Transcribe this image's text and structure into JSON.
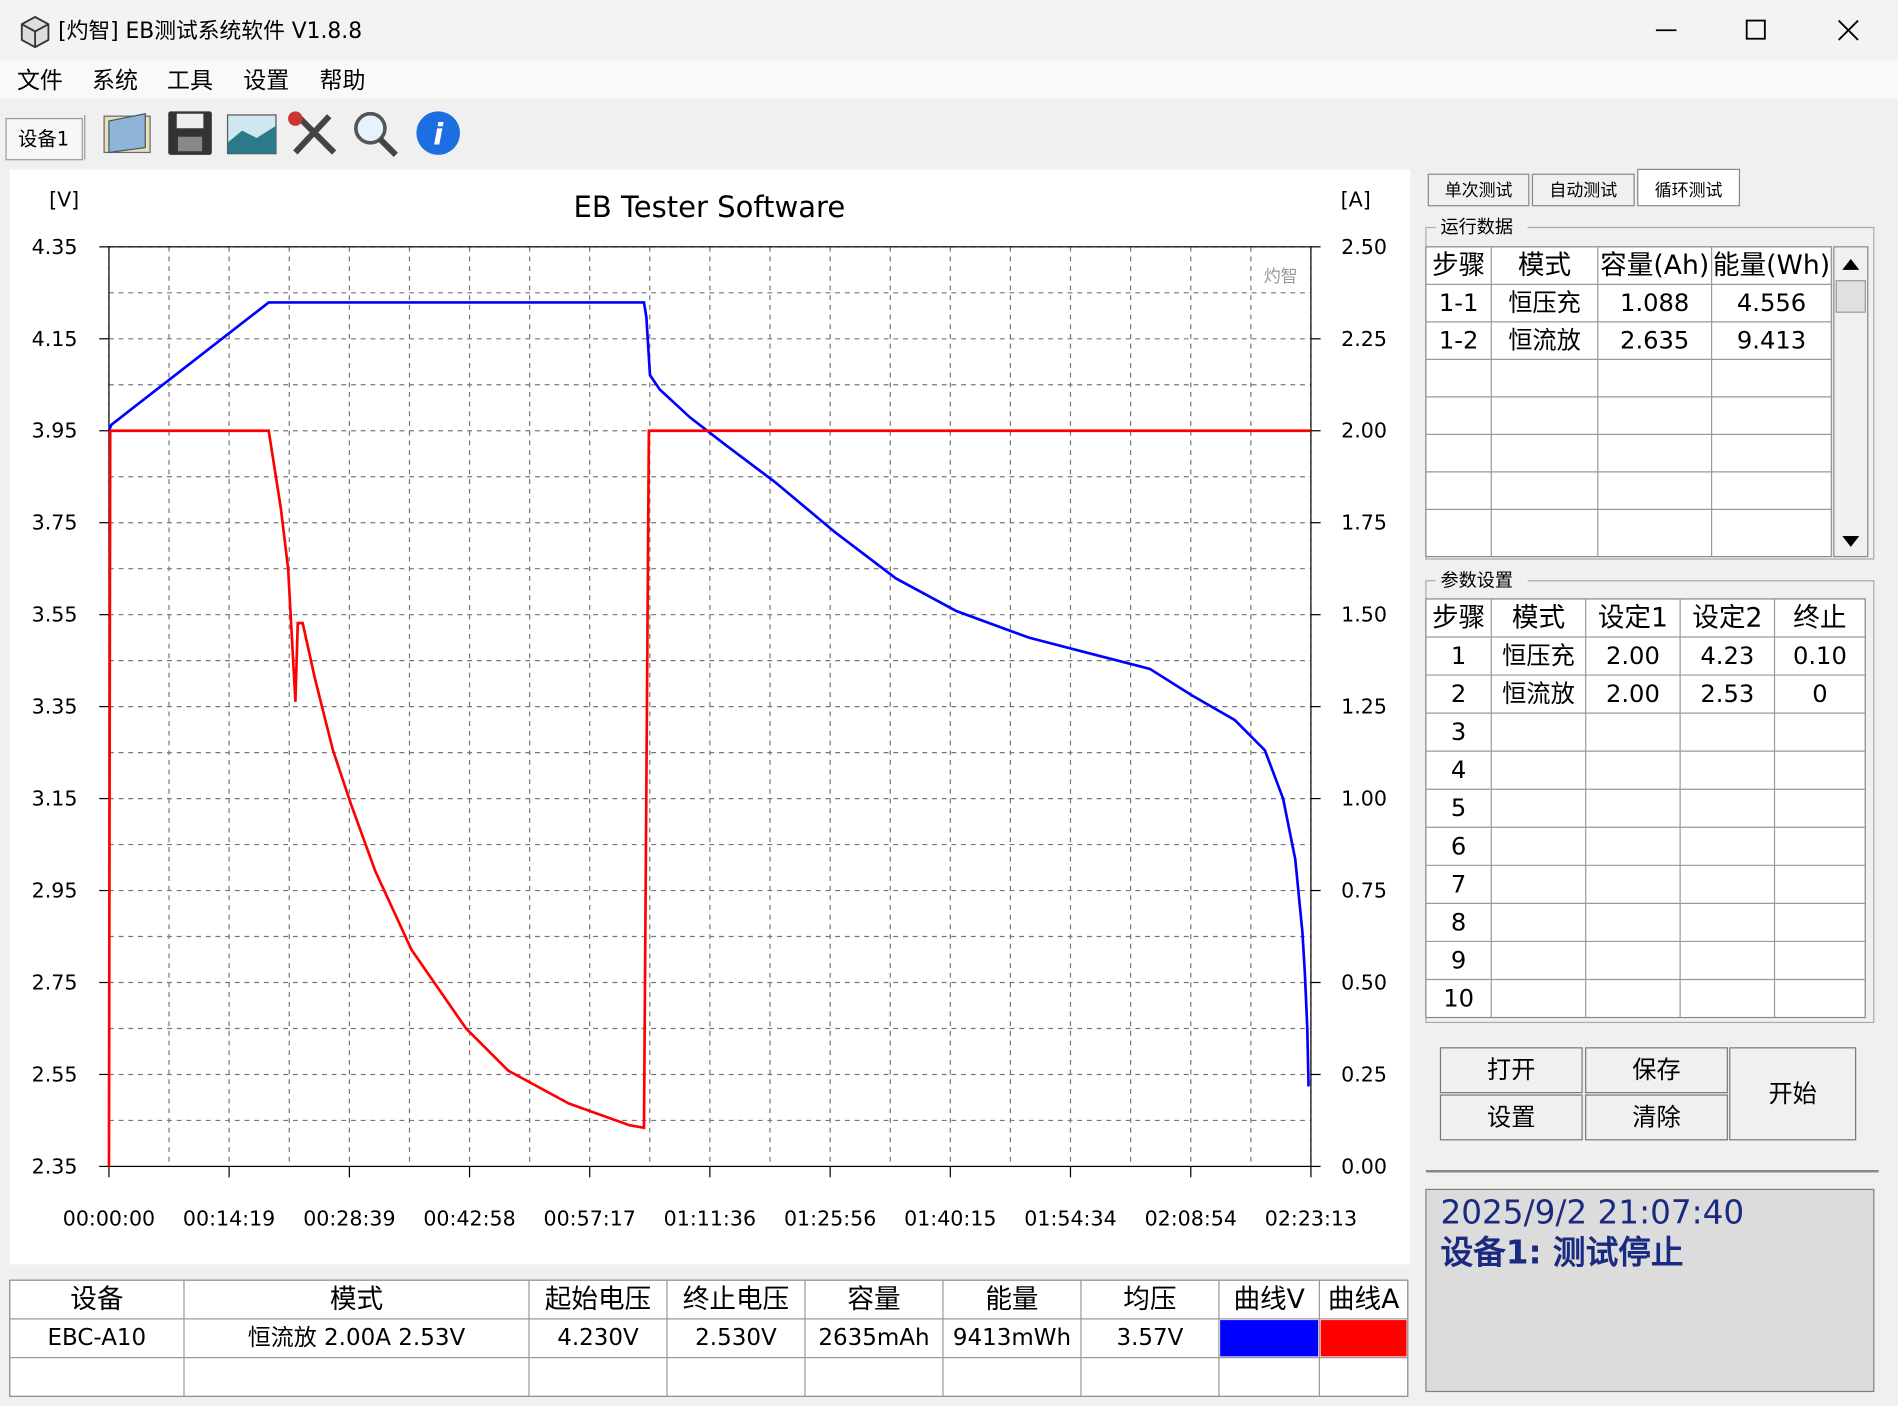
{
  "window": {
    "title": "[灼智] EB测试系统软件 V1.8.8"
  },
  "menu": [
    "文件",
    "系统",
    "工具",
    "设置",
    "帮助"
  ],
  "device_tab": "设备1",
  "chart_data": {
    "type": "line",
    "title": "EB Tester Software",
    "y_label": "[V]",
    "y2_label": "[A]",
    "watermark": "灼智",
    "xlim": [
      0,
      8593
    ],
    "xticks": [
      {
        "value": 0,
        "label": "00:00:00"
      },
      {
        "value": 859,
        "label": "00:14:19"
      },
      {
        "value": 1719,
        "label": "00:28:39"
      },
      {
        "value": 2578,
        "label": "00:42:58"
      },
      {
        "value": 3437,
        "label": "00:57:17"
      },
      {
        "value": 4296,
        "label": "01:11:36"
      },
      {
        "value": 5156,
        "label": "01:25:56"
      },
      {
        "value": 6015,
        "label": "01:40:15"
      },
      {
        "value": 6874,
        "label": "01:54:34"
      },
      {
        "value": 7734,
        "label": "02:08:54"
      },
      {
        "value": 8593,
        "label": "02:23:13"
      }
    ],
    "ylim": [
      2.35,
      4.35
    ],
    "yticks": [
      2.35,
      2.55,
      2.75,
      2.95,
      3.15,
      3.35,
      3.55,
      3.75,
      3.95,
      4.15,
      4.35
    ],
    "y2lim": [
      0,
      2.5
    ],
    "y2ticks": [
      {
        "value": 0,
        "label": "0.00"
      },
      0.25,
      {
        "value": 0.5,
        "label": "0.50"
      },
      0.75,
      {
        "value": 1,
        "label": "1.00"
      },
      1.25,
      {
        "value": 1.5,
        "label": "1.50"
      },
      1.75,
      {
        "value": 2,
        "label": "2.00"
      },
      2.25,
      {
        "value": 2.5,
        "label": "2.50"
      }
    ],
    "grid": true,
    "series": [
      {
        "color": "#0000ff",
        "x": [
          0,
          17,
          1142,
          3825,
          3842,
          3868,
          3937,
          4154,
          4413,
          4759,
          5192,
          5625,
          6058,
          6577,
          7009,
          7442,
          7745,
          8048,
          8264,
          8394,
          8481,
          8532,
          8550,
          8567,
          8576
        ],
        "values": [
          3.95,
          3.963,
          4.229,
          4.229,
          4.197,
          4.071,
          4.04,
          3.979,
          3.918,
          3.839,
          3.729,
          3.629,
          3.558,
          3.5,
          3.466,
          3.432,
          3.374,
          3.321,
          3.255,
          3.15,
          3.018,
          2.86,
          2.768,
          2.65,
          2.524
        ]
      },
      {
        "color": "#ff0000",
        "axis": "y2",
        "x": [
          0,
          9,
          1142,
          1229,
          1281,
          1333,
          1350,
          1385,
          1471,
          1601,
          1731,
          1904,
          2163,
          2553,
          2856,
          3288,
          3721,
          3825,
          3860,
          8593
        ],
        "values": [
          0,
          2,
          2,
          1.789,
          1.625,
          1.263,
          1.477,
          1.477,
          1.329,
          1.132,
          0.984,
          0.803,
          0.589,
          0.375,
          0.26,
          0.171,
          0.112,
          0.105,
          2,
          2
        ]
      }
    ]
  },
  "side_tabs": [
    "单次测试",
    "自动测试",
    "循环测试"
  ],
  "run_data": {
    "title": "运行数据",
    "headers": [
      "步骤",
      "模式",
      "容量(Ah)",
      "能量(Wh)"
    ],
    "rows": [
      [
        "1-1",
        "恒压充",
        "1.088",
        "4.556"
      ],
      [
        "1-2",
        "恒流放",
        "2.635",
        "9.413"
      ]
    ]
  },
  "params": {
    "title": "参数设置",
    "headers": [
      "步骤",
      "模式",
      "设定1",
      "设定2",
      "终止"
    ],
    "rows": [
      [
        "1",
        "恒压充",
        "2.00",
        "4.23",
        "0.10"
      ],
      [
        "2",
        "恒流放",
        "2.00",
        "2.53",
        "0"
      ],
      [
        "3"
      ],
      [
        "4"
      ],
      [
        "5"
      ],
      [
        "6"
      ],
      [
        "7"
      ],
      [
        "8"
      ],
      [
        "9"
      ],
      [
        "10"
      ]
    ]
  },
  "buttons": [
    "打开",
    "保存",
    "设置",
    "清除",
    "开始"
  ],
  "status": {
    "time": "2025/9/2 21:07:40",
    "message": "设备1: 测试停止"
  },
  "summary": {
    "headers": [
      "设备",
      "模式",
      "起始电压",
      "终止电压",
      "容量",
      "能量",
      "均压",
      "曲线V",
      "曲线A"
    ],
    "row": [
      "EBC-A10",
      "恒流放  2.00A  2.53V",
      "4.230V",
      "2.530V",
      "2635mAh",
      "9413mWh",
      "3.57V"
    ]
  }
}
